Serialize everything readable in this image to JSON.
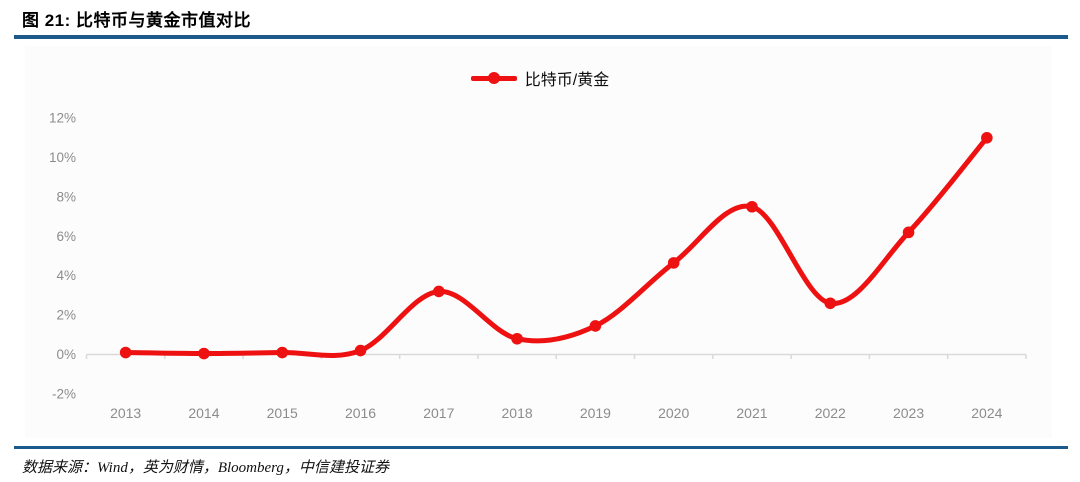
{
  "header": {
    "title": "图 21: 比特币与黄金市值对比"
  },
  "legend": {
    "label": "比特币/黄金"
  },
  "footer": {
    "source": "数据来源：Wind，英为财情，Bloomberg，中信建投证券"
  },
  "colors": {
    "accent_rule_blue": "#1b5a8a",
    "series_red": "#ee1111",
    "axis_line_gray": "#d9d9d9",
    "tick_label_gray": "#8c8c8c"
  },
  "chart_data": {
    "type": "line",
    "title": "",
    "categories": [
      "2013",
      "2014",
      "2015",
      "2016",
      "2017",
      "2018",
      "2019",
      "2020",
      "2021",
      "2022",
      "2023",
      "2024"
    ],
    "series": [
      {
        "name": "比特币/黄金",
        "values": [
          0.1,
          0.05,
          0.1,
          0.2,
          3.2,
          0.8,
          1.45,
          4.65,
          7.5,
          2.6,
          6.2,
          11.0
        ]
      }
    ],
    "unit": "%",
    "yticks": [
      -2,
      0,
      2,
      4,
      6,
      8,
      10,
      12
    ],
    "ylim": [
      -2,
      12
    ],
    "grid": false,
    "smoothed": true,
    "marker": "circle",
    "legend_position": "top-center",
    "xlabel": "",
    "ylabel": ""
  }
}
